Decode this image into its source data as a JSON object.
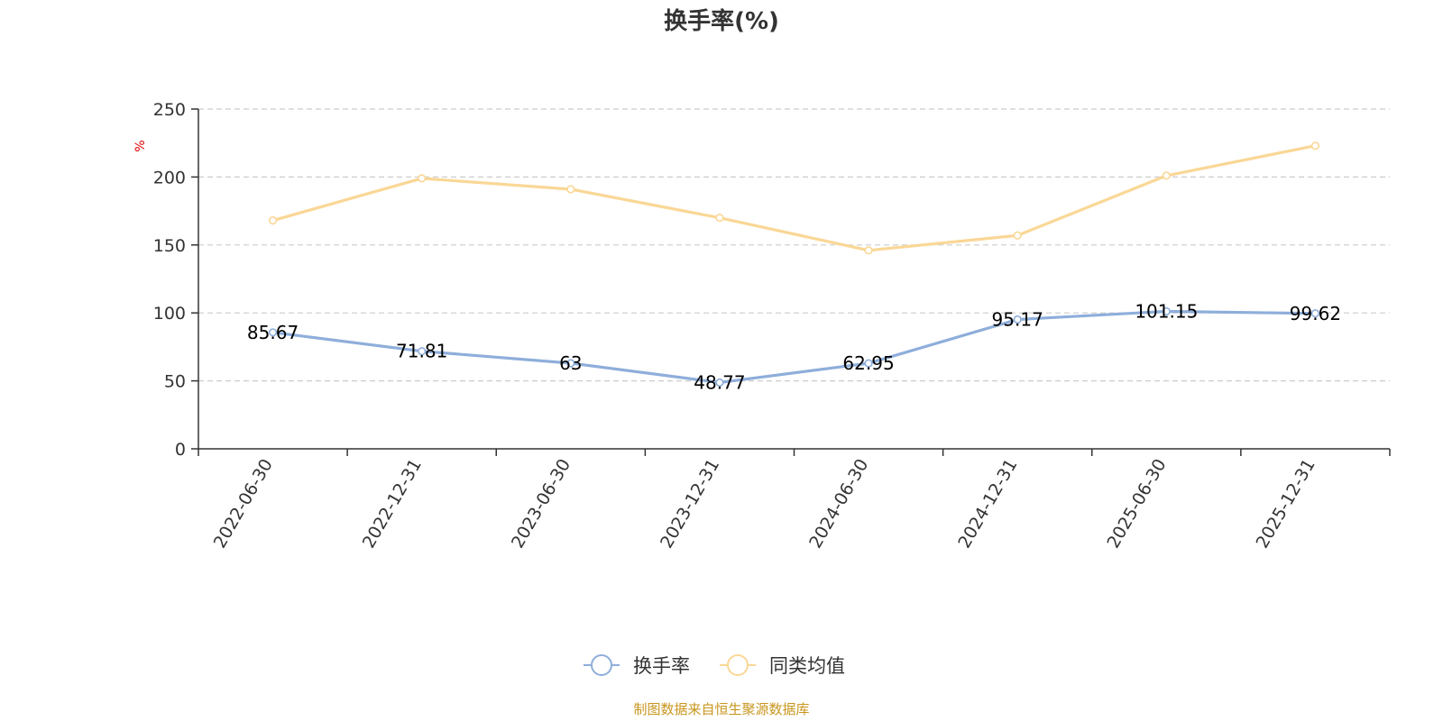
{
  "chart_data": {
    "type": "line",
    "title": "换手率(%)",
    "ylabel": "%",
    "ylim": [
      0,
      250
    ],
    "yticks": [
      0,
      50,
      100,
      150,
      200,
      250
    ],
    "categories": [
      "2022-06-30",
      "2022-12-31",
      "2023-06-30",
      "2023-12-31",
      "2024-06-30",
      "2024-12-31",
      "2025-06-30",
      "2025-12-31"
    ],
    "series": [
      {
        "name": "换手率",
        "color": "#8eaedb",
        "values": [
          85.67,
          71.81,
          63,
          48.77,
          62.95,
          95.17,
          101.15,
          99.62
        ],
        "labels": [
          "85.67",
          "71.81",
          "63",
          "48.77",
          "62.95",
          "95.17",
          "101.15",
          "99.62"
        ]
      },
      {
        "name": "同类均值",
        "color": "#fad796",
        "values": [
          168,
          199,
          191,
          170,
          146,
          157,
          201,
          223
        ]
      }
    ],
    "grid": true,
    "legend": "bottom-center",
    "source": "制图数据来自恒生聚源数据库"
  }
}
